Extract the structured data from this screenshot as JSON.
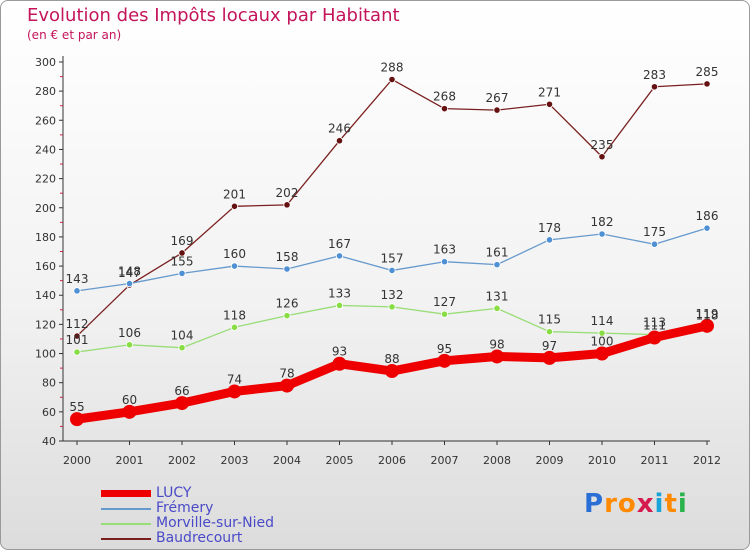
{
  "chart_data": {
    "type": "line",
    "title": "Evolution des Impôts locaux par Habitant",
    "subtitle": "(en € et par an)",
    "xlabel": "",
    "ylabel": "",
    "ylim": [
      40,
      300
    ],
    "yticks": [
      40,
      60,
      80,
      100,
      120,
      140,
      160,
      180,
      200,
      220,
      240,
      260,
      280,
      300
    ],
    "categories": [
      "2000",
      "2001",
      "2002",
      "2003",
      "2004",
      "2005",
      "2006",
      "2007",
      "2008",
      "2009",
      "2010",
      "2011",
      "2012"
    ],
    "grid": false,
    "legend_position": "bottom-left",
    "series": [
      {
        "name": "LUCY",
        "color": "#ee0000",
        "point_color": "#ee0000",
        "values": [
          55,
          60,
          66,
          74,
          78,
          93,
          88,
          95,
          98,
          97,
          100,
          111,
          119
        ],
        "labels": [
          "55",
          "60",
          "66",
          "74",
          "78",
          "93",
          "88",
          "95",
          "98",
          "97",
          "100",
          "111",
          "119"
        ]
      },
      {
        "name": "Frémery",
        "color": "#6699cc",
        "point_color": "#4f8fd4",
        "values": [
          143,
          148,
          155,
          160,
          158,
          167,
          157,
          163,
          161,
          178,
          182,
          175,
          186
        ],
        "labels": [
          "143",
          "148",
          "155",
          "160",
          "158",
          "167",
          "157",
          "163",
          "161",
          "178",
          "182",
          "175",
          "186"
        ]
      },
      {
        "name": "Morville-sur-Nied",
        "color": "#99dd77",
        "point_color": "#88dd44",
        "values": [
          101,
          106,
          104,
          118,
          126,
          133,
          132,
          127,
          131,
          115,
          114,
          113,
          118
        ],
        "labels": [
          "101",
          "106",
          "104",
          "118",
          "126",
          "133",
          "132",
          "127",
          "131",
          "115",
          "114",
          "113",
          "118"
        ]
      },
      {
        "name": "Baudrecourt",
        "color": "#7a1f1f",
        "point_color": "#661111",
        "values": [
          112,
          147,
          169,
          201,
          202,
          246,
          288,
          268,
          267,
          271,
          235,
          283,
          285
        ],
        "labels": [
          "112",
          "147",
          "169",
          "201",
          "202",
          "246",
          "288",
          "268",
          "267",
          "271",
          "235",
          "283",
          "285"
        ]
      }
    ]
  },
  "logo": {
    "letters": [
      "P",
      "r",
      "o",
      "x",
      "i",
      "t",
      "i"
    ],
    "colors": [
      "#2a6fd6",
      "#ff8a00",
      "#ff8a00",
      "#d61a4f",
      "#1aa3d6",
      "#ff8a00",
      "#2ab34a"
    ]
  }
}
